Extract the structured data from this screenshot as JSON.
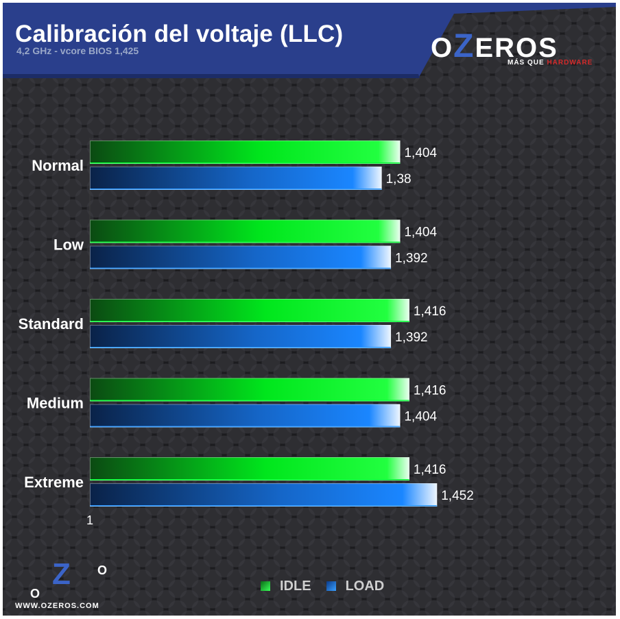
{
  "header": {
    "title": "Calibración del voltaje (LLC)",
    "subtitle": "4,2 GHz - vcore BIOS 1,425"
  },
  "brand": {
    "word_o": "O",
    "word_z": "Z",
    "word_rest": "EROS",
    "tagline_white": "MÁS QUE ",
    "tagline_red": "HARDWARE",
    "url": "WWW.OZEROS.COM"
  },
  "colors": {
    "idle": "#00e61c",
    "load": "#1a86ff",
    "header_bg": "#2a3f8c"
  },
  "chart_data": {
    "type": "bar",
    "orientation": "horizontal",
    "categories": [
      "Normal",
      "Low",
      "Standard",
      "Medium",
      "Extreme"
    ],
    "series": [
      {
        "name": "IDLE",
        "values": [
          1.404,
          1.404,
          1.416,
          1.416,
          1.416
        ],
        "labels": [
          "1,404",
          "1,404",
          "1,416",
          "1,416",
          "1,416"
        ]
      },
      {
        "name": "LOAD",
        "values": [
          1.38,
          1.392,
          1.392,
          1.404,
          1.452
        ],
        "labels": [
          "1,38",
          "1,392",
          "1,392",
          "1,404",
          "1,452"
        ]
      }
    ],
    "axis_min": 1,
    "axis_min_label": "1",
    "title": "Calibración del voltaje (LLC)",
    "subtitle": "4,2 GHz - vcore BIOS 1,425",
    "grid": false,
    "legend_position": "bottom"
  },
  "legend": [
    {
      "label": "IDLE",
      "icon": "green-square-icon"
    },
    {
      "label": "LOAD",
      "icon": "blue-square-icon"
    }
  ]
}
